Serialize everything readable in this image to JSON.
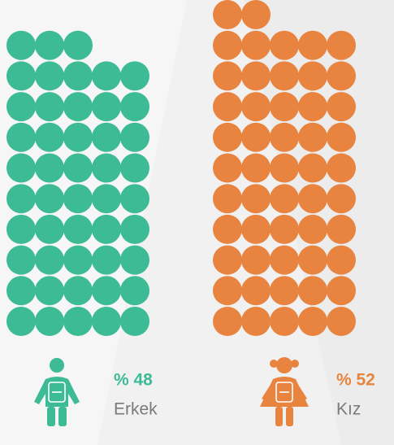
{
  "chart_data": {
    "type": "waffle",
    "categories": [
      "Erkek",
      "Kız"
    ],
    "values": [
      48,
      52
    ],
    "value_labels": [
      "% 48",
      "% 52"
    ],
    "colors": [
      "#3dbb95",
      "#e8843f"
    ]
  }
}
